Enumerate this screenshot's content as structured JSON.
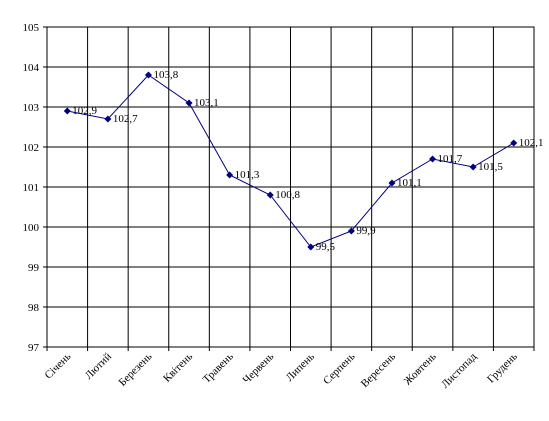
{
  "chart_data": {
    "type": "line",
    "categories": [
      "Січень",
      "Лютий",
      "Березень",
      "Квітень",
      "Травень",
      "Червень",
      "Липень",
      "Серпень",
      "Вересень",
      "Жовтень",
      "Листопад",
      "Грудень"
    ],
    "series": [
      {
        "values": [
          102.9,
          102.7,
          103.8,
          103.1,
          101.3,
          100.8,
          99.5,
          99.9,
          101.1,
          101.7,
          101.5,
          102.1
        ],
        "data_labels": [
          "102,9",
          "102,7",
          "103,8",
          "103,1",
          "101,3",
          "100,8",
          "99,5",
          "99,9",
          "101,1",
          "101,7",
          "101,5",
          "102,1"
        ],
        "color": "#000080",
        "marker": "diamond"
      }
    ],
    "yticks": [
      "97",
      "98",
      "99",
      "100",
      "101",
      "102",
      "103",
      "104",
      "105"
    ],
    "ylim": [
      97,
      105
    ],
    "grid": true,
    "title": "",
    "xlabel": "",
    "ylabel": ""
  }
}
